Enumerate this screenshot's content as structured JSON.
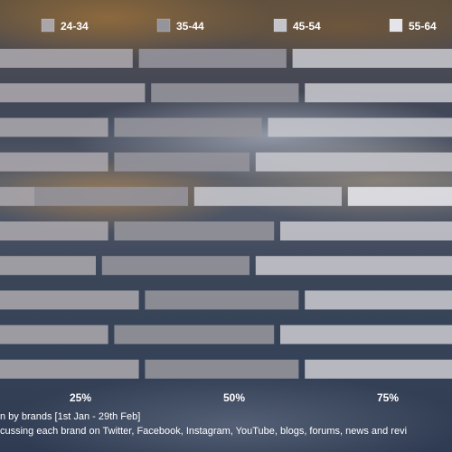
{
  "chart_data": {
    "type": "bar",
    "orientation": "horizontal",
    "stacked": true,
    "legend_position": "top",
    "legend": [
      {
        "name": "24-34",
        "color": "#a9a5ab"
      },
      {
        "name": "35-44",
        "color": "#95949b"
      },
      {
        "name": "45-54",
        "color": "#c4c4cb"
      },
      {
        "name": "55-64",
        "color": "#e4e4ea"
      }
    ],
    "xticks": [
      "25%",
      "50%",
      "75%"
    ],
    "xlim": [
      0,
      100
    ],
    "rows": [
      {
        "segments": [
          {
            "group": "24-34",
            "start": 4.5,
            "end": 33.5
          },
          {
            "group": "35-44",
            "start": 34.5,
            "end": 58.5
          },
          {
            "group": "45-54",
            "start": 59.5,
            "end": 100
          }
        ]
      },
      {
        "segments": [
          {
            "group": "24-34",
            "start": 5.5,
            "end": 35.5
          },
          {
            "group": "35-44",
            "start": 36.5,
            "end": 60.5
          },
          {
            "group": "45-54",
            "start": 61.5,
            "end": 100
          }
        ]
      },
      {
        "segments": [
          {
            "group": "24-34",
            "start": 2.5,
            "end": 29.5
          },
          {
            "group": "35-44",
            "start": 30.5,
            "end": 54.5
          },
          {
            "group": "45-54",
            "start": 55.5,
            "end": 100
          }
        ]
      },
      {
        "segments": [
          {
            "group": "24-34",
            "start": 3.5,
            "end": 29.5
          },
          {
            "group": "35-44",
            "start": 30.5,
            "end": 52.5
          },
          {
            "group": "45-54",
            "start": 53.5,
            "end": 100
          }
        ]
      },
      {
        "segments": [
          {
            "group": "24-34",
            "start": 0,
            "end": 17.5
          },
          {
            "group": "35-44",
            "start": 17.5,
            "end": 42.5
          },
          {
            "group": "45-54",
            "start": 43.5,
            "end": 67.5
          },
          {
            "group": "55-64",
            "start": 68.5,
            "end": 100
          }
        ]
      },
      {
        "segments": [
          {
            "group": "24-34",
            "start": 2.5,
            "end": 29.5
          },
          {
            "group": "35-44",
            "start": 30.5,
            "end": 56.5
          },
          {
            "group": "45-54",
            "start": 57.5,
            "end": 100
          }
        ]
      },
      {
        "segments": [
          {
            "group": "24-34",
            "start": 1.5,
            "end": 27.5
          },
          {
            "group": "35-44",
            "start": 28.5,
            "end": 52.5
          },
          {
            "group": "45-54",
            "start": 53.5,
            "end": 100
          }
        ]
      },
      {
        "segments": [
          {
            "group": "24-34",
            "start": 4.5,
            "end": 34.5
          },
          {
            "group": "35-44",
            "start": 35.5,
            "end": 60.5
          },
          {
            "group": "45-54",
            "start": 61.5,
            "end": 100
          }
        ]
      },
      {
        "segments": [
          {
            "group": "24-34",
            "start": 1,
            "end": 29.5
          },
          {
            "group": "35-44",
            "start": 30.5,
            "end": 56.5
          },
          {
            "group": "45-54",
            "start": 57.5,
            "end": 100
          }
        ]
      },
      {
        "segments": [
          {
            "group": "24-34",
            "start": 4.5,
            "end": 34.5
          },
          {
            "group": "35-44",
            "start": 35.5,
            "end": 60.5
          },
          {
            "group": "45-54",
            "start": 61.5,
            "end": 100
          }
        ]
      }
    ]
  },
  "footnotes": [
    "n by brands [1st Jan - 29th Feb]",
    "cussing each brand on Twitter, Facebook, Instagram, YouTube, blogs, forums, news and revi"
  ]
}
